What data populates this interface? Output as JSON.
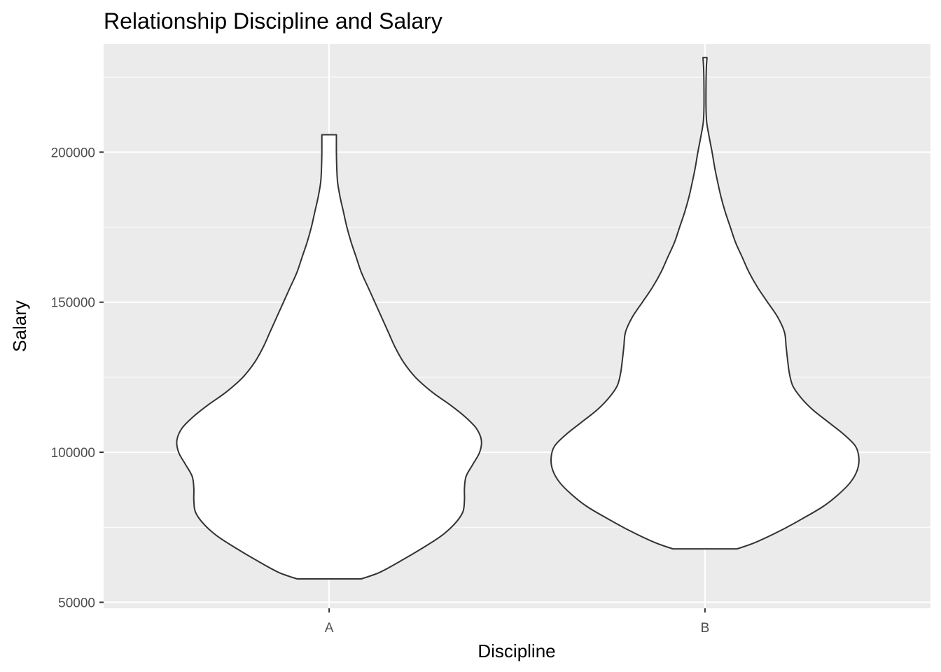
{
  "chart_data": {
    "type": "violin",
    "title": "Relationship Discipline and Salary",
    "xlabel": "Discipline",
    "ylabel": "Salary",
    "categories": [
      "A",
      "B"
    ],
    "ylim": [
      48000,
      236000
    ],
    "yticks": [
      50000,
      100000,
      150000,
      200000
    ],
    "ytick_labels": [
      "50000",
      "100000",
      "150000",
      "200000"
    ],
    "grid": true,
    "colors": {
      "panel": "#ebebeb",
      "grid": "#ffffff",
      "outline": "#333333",
      "fill": "#ffffff"
    },
    "series": [
      {
        "category": "A",
        "min": 57800,
        "max": 205800,
        "density_profile": [
          [
            57800,
            0.19
          ],
          [
            60000,
            0.3
          ],
          [
            64000,
            0.43
          ],
          [
            68000,
            0.55
          ],
          [
            72000,
            0.66
          ],
          [
            76000,
            0.74
          ],
          [
            80000,
            0.79
          ],
          [
            84000,
            0.8
          ],
          [
            88000,
            0.8
          ],
          [
            92000,
            0.81
          ],
          [
            96000,
            0.85
          ],
          [
            100000,
            0.89
          ],
          [
            104000,
            0.9
          ],
          [
            108000,
            0.87
          ],
          [
            112000,
            0.8
          ],
          [
            116000,
            0.71
          ],
          [
            120000,
            0.61
          ],
          [
            125000,
            0.51
          ],
          [
            130000,
            0.44
          ],
          [
            135000,
            0.39
          ],
          [
            140000,
            0.35
          ],
          [
            145000,
            0.31
          ],
          [
            150000,
            0.27
          ],
          [
            155000,
            0.23
          ],
          [
            160000,
            0.19
          ],
          [
            165000,
            0.16
          ],
          [
            170000,
            0.13
          ],
          [
            175000,
            0.105
          ],
          [
            180000,
            0.085
          ],
          [
            185000,
            0.065
          ],
          [
            190000,
            0.05
          ],
          [
            195000,
            0.045
          ],
          [
            200000,
            0.043
          ],
          [
            205800,
            0.043
          ]
        ]
      },
      {
        "category": "B",
        "min": 67800,
        "max": 231500,
        "density_profile": [
          [
            67800,
            0.19
          ],
          [
            70000,
            0.3
          ],
          [
            74000,
            0.45
          ],
          [
            78000,
            0.58
          ],
          [
            82000,
            0.7
          ],
          [
            86000,
            0.79
          ],
          [
            90000,
            0.86
          ],
          [
            94000,
            0.9
          ],
          [
            98000,
            0.91
          ],
          [
            102000,
            0.89
          ],
          [
            106000,
            0.82
          ],
          [
            110000,
            0.73
          ],
          [
            114000,
            0.64
          ],
          [
            118000,
            0.57
          ],
          [
            122000,
            0.52
          ],
          [
            126000,
            0.5
          ],
          [
            130000,
            0.49
          ],
          [
            135000,
            0.48
          ],
          [
            140000,
            0.47
          ],
          [
            145000,
            0.43
          ],
          [
            150000,
            0.37
          ],
          [
            155000,
            0.31
          ],
          [
            160000,
            0.26
          ],
          [
            165000,
            0.22
          ],
          [
            170000,
            0.18
          ],
          [
            175000,
            0.15
          ],
          [
            180000,
            0.12
          ],
          [
            185000,
            0.095
          ],
          [
            190000,
            0.075
          ],
          [
            195000,
            0.057
          ],
          [
            200000,
            0.042
          ],
          [
            205000,
            0.025
          ],
          [
            210000,
            0.01
          ],
          [
            215000,
            0.006
          ],
          [
            222000,
            0.006
          ],
          [
            228000,
            0.008
          ],
          [
            231500,
            0.012
          ]
        ]
      }
    ]
  }
}
